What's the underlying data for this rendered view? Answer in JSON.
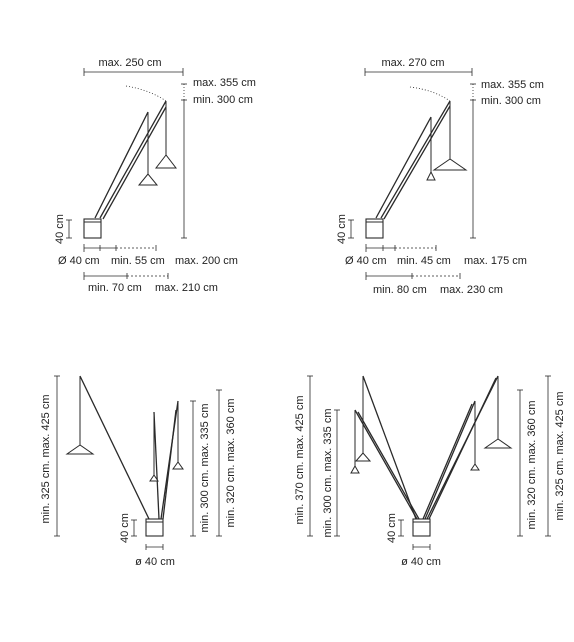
{
  "diagram_1": {
    "max_width": "max. 250 cm",
    "height_max": "max. 355 cm",
    "height_min": "min. 300 cm",
    "base_height": "40 cm",
    "row_a": [
      "Ø 40 cm",
      "min. 55 cm",
      "max. 200 cm"
    ],
    "row_b": [
      "min. 70 cm",
      "max. 210 cm"
    ]
  },
  "diagram_2": {
    "max_width": "max. 270 cm",
    "height_max": "max. 355 cm",
    "height_min": "min. 300 cm",
    "base_height": "40 cm",
    "row_a": [
      "Ø 40 cm",
      "min. 45 cm",
      "max. 175 cm"
    ],
    "row_b": [
      "min. 80 cm",
      "max. 230 cm"
    ]
  },
  "diagram_3": {
    "left_height": "min. 325 cm. max. 425 cm",
    "right_height_1": "min. 300 cm. max. 335 cm",
    "right_height_2": "min. 320 cm. max. 360 cm",
    "base_height": "40 cm",
    "base_diameter": "ø 40 cm"
  },
  "diagram_4": {
    "left_height_1": "min. 370 cm. max. 425 cm",
    "left_height_2": "min. 300 cm. max. 335 cm",
    "right_height_1": "min. 320 cm. max. 360 cm",
    "right_height_2": "min. 325 cm. max. 425 cm",
    "base_height": "40 cm",
    "base_diameter": "ø 40 cm"
  }
}
